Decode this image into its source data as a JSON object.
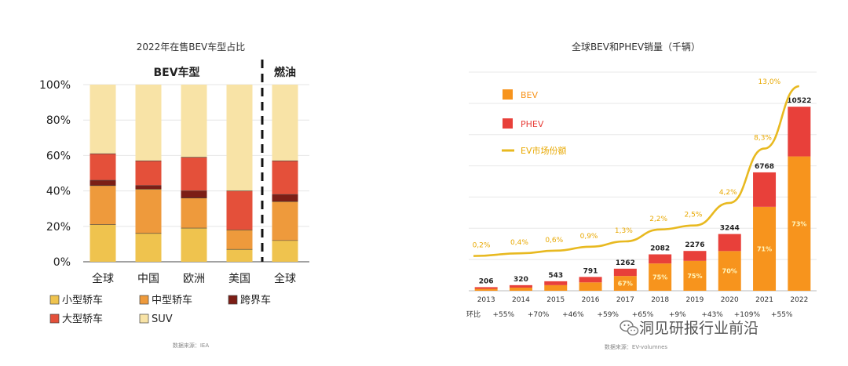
{
  "chart_data": [
    {
      "type": "bar",
      "stacked": true,
      "title": "2022年在售BEV车型占比",
      "group_labels": [
        "BEV车型",
        "燃油"
      ],
      "categories": [
        "全球",
        "中国",
        "欧洲",
        "美国",
        "全球"
      ],
      "ylim": [
        0,
        100
      ],
      "yticks": [
        "0%",
        "20%",
        "40%",
        "60%",
        "80%",
        "100%"
      ],
      "grid": true,
      "series": [
        {
          "name": "小型轿车",
          "values": [
            21,
            16,
            19,
            7,
            12
          ],
          "color": "#EFC34E"
        },
        {
          "name": "中型轿车",
          "values": [
            22,
            25,
            17,
            11,
            22
          ],
          "color": "#EE9A3C"
        },
        {
          "name": "跨界车",
          "values": [
            3,
            2,
            4,
            0,
            4
          ],
          "color": "#7C1E16"
        },
        {
          "name": "大型轿车",
          "values": [
            15,
            14,
            19,
            22,
            19
          ],
          "color": "#E4503A"
        },
        {
          "name": "SUV",
          "values": [
            39,
            43,
            41,
            60,
            43
          ],
          "color": "#F8E3A6"
        }
      ],
      "source": "数据来源：IEA"
    },
    {
      "type": "bar",
      "stacked": true,
      "title": "全球BEV和PHEV销量（千辆）",
      "categories": [
        "2013",
        "2014",
        "2015",
        "2016",
        "2017",
        "2018",
        "2019",
        "2020",
        "2021",
        "2022"
      ],
      "totals": [
        206,
        320,
        543,
        791,
        1262,
        2082,
        2276,
        3244,
        6768,
        10522
      ],
      "series": [
        {
          "name": "BEV",
          "values": [
            110,
            180,
            320,
            480,
            845,
            1560,
            1710,
            2270,
            4800,
            7680
          ],
          "color": "#F7941D"
        },
        {
          "name": "PHEV",
          "values": [
            96,
            140,
            223,
            311,
            417,
            522,
            566,
            974,
            1968,
            2842
          ],
          "color": "#E8403A"
        }
      ],
      "bev_share_labels": [
        "",
        "",
        "",
        "",
        "67%",
        "75%",
        "75%",
        "70%",
        "71%",
        "73%"
      ],
      "line_series": {
        "name": "EV市场份额",
        "values": [
          0.2,
          0.4,
          0.6,
          0.9,
          1.3,
          2.2,
          2.5,
          4.2,
          8.3,
          13.0
        ],
        "labels": [
          "0,2%",
          "0,4%",
          "0,6%",
          "0,9%",
          "1,3%",
          "2,2%",
          "2,5%",
          "4,2%",
          "8,3%",
          "13,0%"
        ],
        "color": "#E8B920"
      },
      "growth_row_label": "环比",
      "growth": [
        "+55%",
        "+70%",
        "+46%",
        "+59%",
        "+65%",
        "+9%",
        "+43%",
        "+109%",
        "+55%"
      ],
      "ylim": [
        0,
        12500
      ],
      "grid": true,
      "source": "数据来源：EV-volumnes"
    }
  ],
  "watermark": "洞见研报行业前沿"
}
